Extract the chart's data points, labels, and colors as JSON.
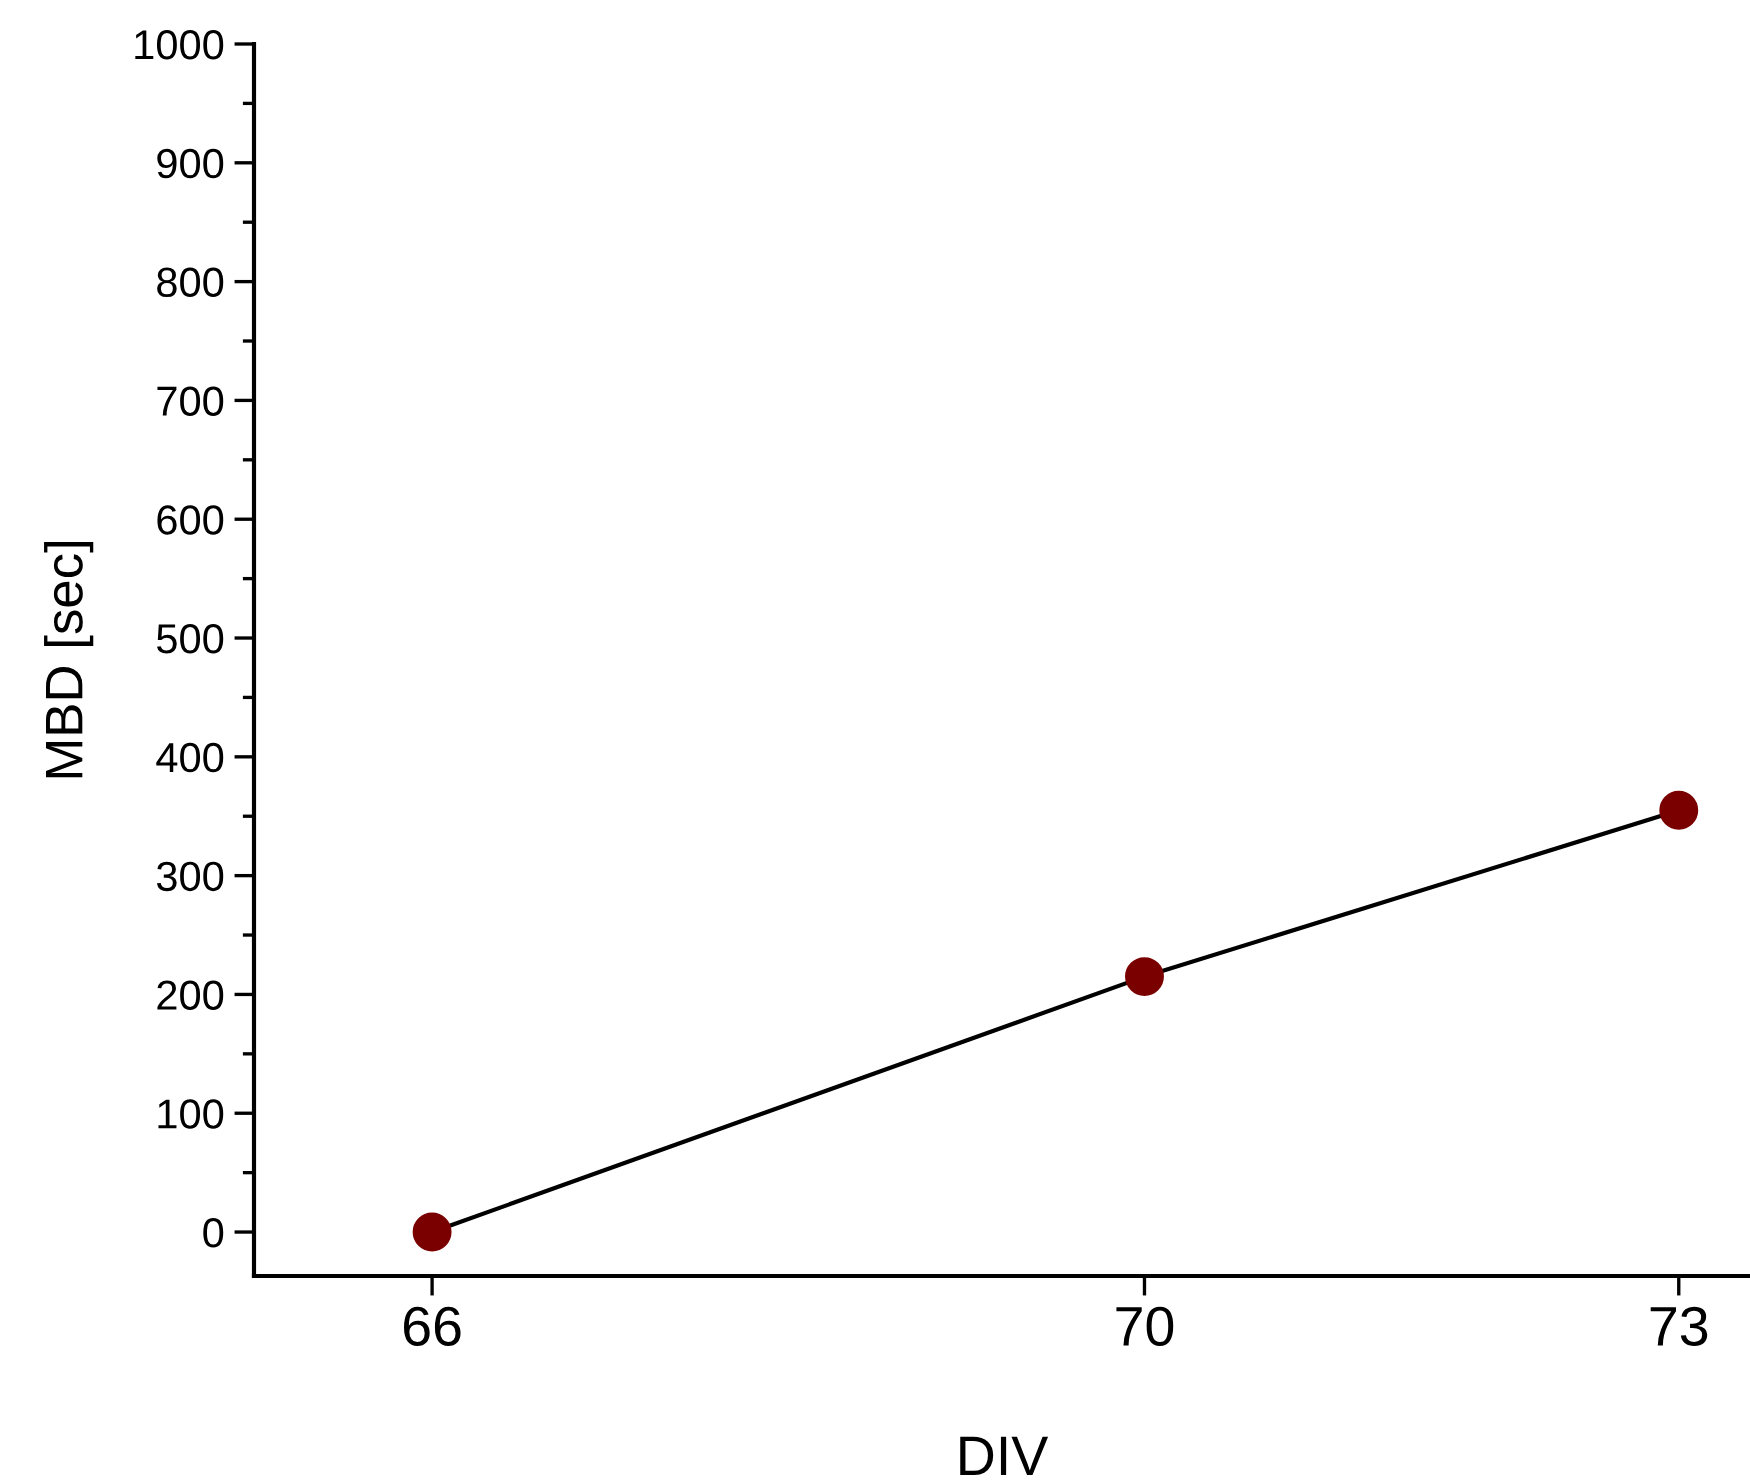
{
  "chart_data": {
    "type": "line",
    "xlabel": "DIV",
    "ylabel": "MBD [sec]",
    "x": [
      66,
      70,
      73
    ],
    "series": [
      {
        "color": "#7a0000",
        "values": [
          0,
          215,
          355
        ]
      }
    ],
    "marker": "circle",
    "line_style": "solid",
    "grid": false,
    "xlim": [
      65.0,
      73.4
    ],
    "xticks": [
      66,
      70,
      73
    ],
    "ylim": [
      -37,
      1000
    ],
    "yticks": [
      0,
      100,
      200,
      300,
      400,
      500,
      600,
      700,
      800,
      900,
      1000
    ]
  }
}
